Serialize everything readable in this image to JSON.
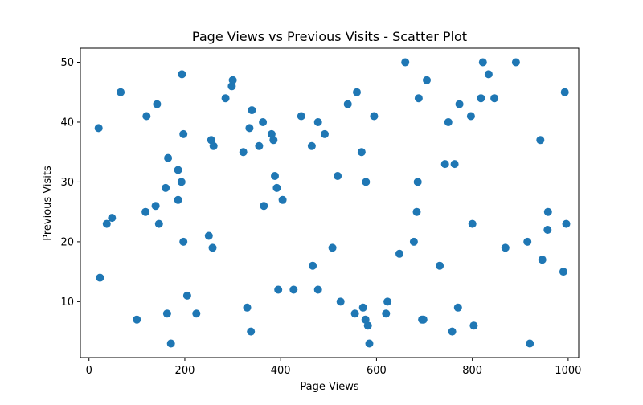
{
  "chart_data": {
    "type": "scatter",
    "title": "Page Views vs Previous Visits - Scatter Plot",
    "xlabel": "Page Views",
    "ylabel": "Previous Visits",
    "xlim": [
      -18,
      1022
    ],
    "ylim": [
      0.65,
      52.35
    ],
    "xticks": [
      0,
      200,
      400,
      600,
      800,
      1000
    ],
    "yticks": [
      10,
      20,
      30,
      40,
      50
    ],
    "grid": false,
    "legend": "none",
    "marker_color": "#1f77b4",
    "points": [
      {
        "x": 20,
        "y": 39
      },
      {
        "x": 23,
        "y": 14
      },
      {
        "x": 37,
        "y": 23
      },
      {
        "x": 48,
        "y": 24
      },
      {
        "x": 66,
        "y": 45
      },
      {
        "x": 100,
        "y": 7
      },
      {
        "x": 118,
        "y": 25
      },
      {
        "x": 120,
        "y": 41
      },
      {
        "x": 139,
        "y": 26
      },
      {
        "x": 142,
        "y": 43
      },
      {
        "x": 146,
        "y": 23
      },
      {
        "x": 160,
        "y": 29
      },
      {
        "x": 163,
        "y": 8
      },
      {
        "x": 165,
        "y": 34
      },
      {
        "x": 171,
        "y": 3
      },
      {
        "x": 186,
        "y": 32
      },
      {
        "x": 186,
        "y": 27
      },
      {
        "x": 193,
        "y": 30
      },
      {
        "x": 194,
        "y": 48
      },
      {
        "x": 197,
        "y": 20
      },
      {
        "x": 197,
        "y": 38
      },
      {
        "x": 205,
        "y": 11
      },
      {
        "x": 224,
        "y": 8
      },
      {
        "x": 250,
        "y": 21
      },
      {
        "x": 255,
        "y": 37
      },
      {
        "x": 258,
        "y": 19
      },
      {
        "x": 260,
        "y": 36
      },
      {
        "x": 285,
        "y": 44
      },
      {
        "x": 298,
        "y": 46
      },
      {
        "x": 300,
        "y": 47
      },
      {
        "x": 322,
        "y": 35
      },
      {
        "x": 330,
        "y": 9
      },
      {
        "x": 335,
        "y": 39
      },
      {
        "x": 338,
        "y": 5
      },
      {
        "x": 340,
        "y": 42
      },
      {
        "x": 355,
        "y": 36
      },
      {
        "x": 363,
        "y": 40
      },
      {
        "x": 365,
        "y": 26
      },
      {
        "x": 381,
        "y": 38
      },
      {
        "x": 385,
        "y": 37
      },
      {
        "x": 388,
        "y": 31
      },
      {
        "x": 392,
        "y": 29
      },
      {
        "x": 395,
        "y": 12
      },
      {
        "x": 404,
        "y": 27
      },
      {
        "x": 427,
        "y": 12
      },
      {
        "x": 443,
        "y": 41
      },
      {
        "x": 465,
        "y": 36
      },
      {
        "x": 467,
        "y": 16
      },
      {
        "x": 478,
        "y": 12
      },
      {
        "x": 478,
        "y": 40
      },
      {
        "x": 492,
        "y": 38
      },
      {
        "x": 508,
        "y": 19
      },
      {
        "x": 519,
        "y": 31
      },
      {
        "x": 525,
        "y": 10
      },
      {
        "x": 540,
        "y": 43
      },
      {
        "x": 555,
        "y": 8
      },
      {
        "x": 559,
        "y": 45
      },
      {
        "x": 569,
        "y": 35
      },
      {
        "x": 572,
        "y": 9
      },
      {
        "x": 577,
        "y": 7
      },
      {
        "x": 578,
        "y": 30
      },
      {
        "x": 582,
        "y": 6
      },
      {
        "x": 585,
        "y": 3
      },
      {
        "x": 595,
        "y": 41
      },
      {
        "x": 620,
        "y": 8
      },
      {
        "x": 623,
        "y": 10
      },
      {
        "x": 648,
        "y": 18
      },
      {
        "x": 660,
        "y": 50
      },
      {
        "x": 678,
        "y": 20
      },
      {
        "x": 684,
        "y": 25
      },
      {
        "x": 686,
        "y": 30
      },
      {
        "x": 688,
        "y": 44
      },
      {
        "x": 695,
        "y": 7
      },
      {
        "x": 698,
        "y": 7
      },
      {
        "x": 705,
        "y": 47
      },
      {
        "x": 732,
        "y": 16
      },
      {
        "x": 743,
        "y": 33
      },
      {
        "x": 750,
        "y": 40
      },
      {
        "x": 758,
        "y": 5
      },
      {
        "x": 763,
        "y": 33
      },
      {
        "x": 770,
        "y": 9
      },
      {
        "x": 773,
        "y": 43
      },
      {
        "x": 797,
        "y": 41
      },
      {
        "x": 800,
        "y": 23
      },
      {
        "x": 803,
        "y": 6
      },
      {
        "x": 818,
        "y": 44
      },
      {
        "x": 822,
        "y": 50
      },
      {
        "x": 834,
        "y": 48
      },
      {
        "x": 846,
        "y": 44
      },
      {
        "x": 869,
        "y": 19
      },
      {
        "x": 891,
        "y": 50
      },
      {
        "x": 915,
        "y": 20
      },
      {
        "x": 920,
        "y": 3
      },
      {
        "x": 942,
        "y": 37
      },
      {
        "x": 946,
        "y": 17
      },
      {
        "x": 957,
        "y": 22
      },
      {
        "x": 958,
        "y": 25
      },
      {
        "x": 990,
        "y": 15
      },
      {
        "x": 993,
        "y": 45
      },
      {
        "x": 996,
        "y": 23
      }
    ]
  }
}
